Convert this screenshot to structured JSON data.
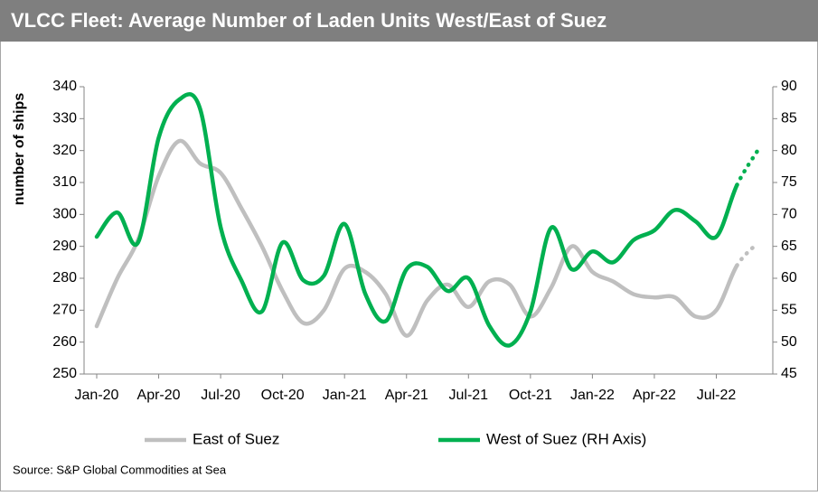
{
  "chart_data": {
    "type": "line",
    "title": "VLCC Fleet: Average Number of Laden Units West/East of Suez",
    "y_label": "number of ships",
    "source": "Source: S&P Global Commodities at Sea",
    "categories": [
      "Jan-20",
      null,
      null,
      "Apr-20",
      null,
      null,
      "Jul-20",
      null,
      null,
      "Oct-20",
      null,
      null,
      "Jan-21",
      null,
      null,
      "Apr-21",
      null,
      null,
      "Jul-21",
      null,
      null,
      "Oct-21",
      null,
      null,
      "Jan-22",
      null,
      null,
      "Apr-22",
      null,
      null,
      "Jul-22",
      null,
      null
    ],
    "ylim": [
      250,
      340
    ],
    "yticks": [
      250,
      260,
      270,
      280,
      290,
      300,
      310,
      320,
      330,
      340
    ],
    "y2lim": [
      45,
      90
    ],
    "y2ticks": [
      45,
      50,
      55,
      60,
      65,
      70,
      75,
      80,
      85,
      90
    ],
    "series": [
      {
        "name": "East of Suez",
        "color": "#bfbfbf",
        "dotted_from": 31,
        "values": [
          265,
          280,
          292,
          312,
          323,
          316,
          313,
          302,
          290,
          276,
          266,
          270,
          283,
          282,
          275,
          262,
          273,
          278,
          271,
          279,
          278,
          268,
          277,
          290,
          282,
          279,
          275,
          274,
          274,
          268,
          270,
          284,
          291
        ]
      },
      {
        "name": "West of Suez (RH Axis)",
        "color": "#00b050",
        "axis": "y2",
        "dotted_from": 31,
        "values": [
          66.5,
          70.3,
          65.6,
          82,
          88,
          86.6,
          68,
          59.7,
          54.8,
          65.6,
          59.7,
          60.4,
          68.5,
          57.6,
          53.3,
          61.4,
          61.8,
          58,
          60,
          52.6,
          49.5,
          54.8,
          67.9,
          61.4,
          64.2,
          62.5,
          66,
          67.5,
          70.7,
          68.9,
          66.5,
          74.6,
          80
        ]
      }
    ]
  }
}
